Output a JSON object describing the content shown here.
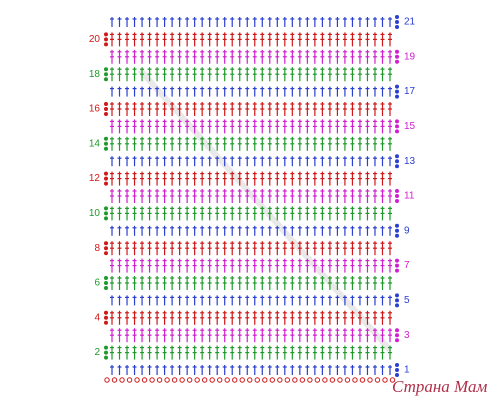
{
  "rows": [
    {
      "label": "1",
      "color": "#2b3fd0"
    },
    {
      "label": "2",
      "color": "#1f9a2a"
    },
    {
      "label": "3",
      "color": "#d020d0"
    },
    {
      "label": "4",
      "color": "#d01818"
    },
    {
      "label": "5",
      "color": "#2b3fd0"
    },
    {
      "label": "6",
      "color": "#1f9a2a"
    },
    {
      "label": "7",
      "color": "#d020d0"
    },
    {
      "label": "8",
      "color": "#d01818"
    },
    {
      "label": "9",
      "color": "#2b3fd0"
    },
    {
      "label": "10",
      "color": "#1f9a2a"
    },
    {
      "label": "11",
      "color": "#d020d0"
    },
    {
      "label": "12",
      "color": "#d01818"
    },
    {
      "label": "13",
      "color": "#2b3fd0"
    },
    {
      "label": "14",
      "color": "#1f9a2a"
    },
    {
      "label": "15",
      "color": "#d020d0"
    },
    {
      "label": "16",
      "color": "#d01818"
    },
    {
      "label": "17",
      "color": "#2b3fd0"
    },
    {
      "label": "18",
      "color": "#1f9a2a"
    },
    {
      "label": "19",
      "color": "#d020d0"
    },
    {
      "label": "20",
      "color": "#d01818"
    },
    {
      "label": "21",
      "color": "#2b3fd0"
    }
  ],
  "foundation_color": "#d01818",
  "watermark": "Страна Мам"
}
